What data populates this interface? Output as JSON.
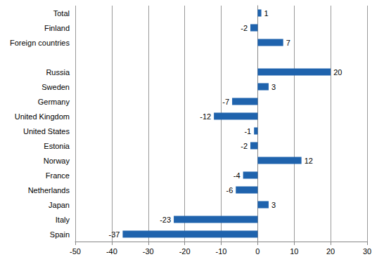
{
  "chart_data": {
    "type": "bar",
    "orientation": "horizontal",
    "categories": [
      "Total",
      "Finland",
      "Foreign countries",
      null,
      "Russia",
      "Sweden",
      "Germany",
      "United Kingdom",
      "United States",
      "Estonia",
      "Norway",
      "France",
      "Netherlands",
      "Japan",
      "Italy",
      "Spain"
    ],
    "values": [
      1,
      -2,
      7,
      null,
      20,
      3,
      -7,
      -12,
      -1,
      -2,
      12,
      -4,
      -6,
      3,
      -23,
      -37
    ],
    "color": "#1f63ad",
    "xlim": [
      -50,
      30
    ],
    "xticks": [
      -50,
      -40,
      -30,
      -20,
      -10,
      0,
      10,
      20,
      30
    ],
    "grid": true,
    "data_labels": true
  }
}
